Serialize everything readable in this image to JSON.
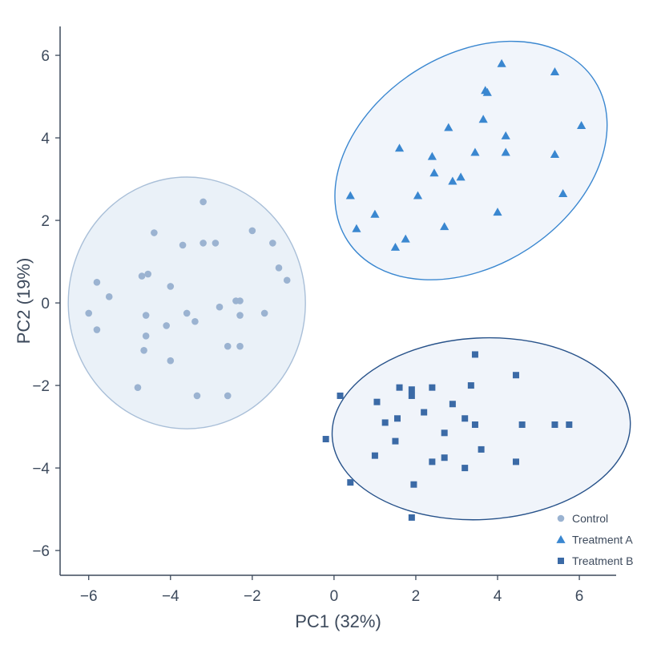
{
  "chart_data": {
    "type": "scatter",
    "xlabel": "PC1 (32%)",
    "ylabel": "PC2 (19%)",
    "xlim": [
      -6.7,
      6.9
    ],
    "ylim": [
      -6.6,
      6.7
    ],
    "xticks": [
      -6,
      -4,
      -2,
      0,
      2,
      4,
      6
    ],
    "yticks": [
      -6,
      -4,
      -2,
      0,
      2,
      4,
      6
    ],
    "xtick_labels": [
      "−6",
      "−4",
      "−2",
      "0",
      "2",
      "4",
      "6"
    ],
    "ytick_labels": [
      "−6",
      "−4",
      "−2",
      "0",
      "2",
      "4",
      "6"
    ],
    "grid": false,
    "legend_position": "bottom-right",
    "series": [
      {
        "name": "Control",
        "marker": "circle",
        "color": "#9bb3d1",
        "ellipse": {
          "center": [
            -3.6,
            0.0
          ],
          "rx": 2.9,
          "ry": 3.05,
          "fill": "#e6eef7",
          "stroke": "#a9bfd8"
        },
        "points": [
          [
            -3.2,
            2.45
          ],
          [
            -4.4,
            1.7
          ],
          [
            -3.7,
            1.4
          ],
          [
            -3.2,
            1.45
          ],
          [
            -2.9,
            1.45
          ],
          [
            -2.0,
            1.75
          ],
          [
            -1.5,
            1.45
          ],
          [
            -1.35,
            0.85
          ],
          [
            -1.15,
            0.55
          ],
          [
            -4.7,
            0.65
          ],
          [
            -4.55,
            0.7
          ],
          [
            -4.0,
            0.4
          ],
          [
            -5.8,
            0.5
          ],
          [
            -5.5,
            0.15
          ],
          [
            -6.0,
            -0.25
          ],
          [
            -5.8,
            -0.65
          ],
          [
            -4.6,
            -0.3
          ],
          [
            -4.6,
            -0.8
          ],
          [
            -4.1,
            -0.55
          ],
          [
            -3.6,
            -0.25
          ],
          [
            -3.4,
            -0.45
          ],
          [
            -2.8,
            -0.1
          ],
          [
            -2.4,
            0.05
          ],
          [
            -2.3,
            0.05
          ],
          [
            -2.3,
            -0.3
          ],
          [
            -1.7,
            -0.25
          ],
          [
            -4.65,
            -1.15
          ],
          [
            -4.0,
            -1.4
          ],
          [
            -2.6,
            -1.05
          ],
          [
            -2.3,
            -1.05
          ],
          [
            -4.8,
            -2.05
          ],
          [
            -3.35,
            -2.25
          ],
          [
            -2.6,
            -2.25
          ]
        ]
      },
      {
        "name": "Treatment A",
        "marker": "triangle",
        "color": "#3a87d0",
        "ellipse": {
          "center": [
            3.35,
            3.45
          ],
          "rx": 3.6,
          "ry": 2.55,
          "angle": -33,
          "fill": "#eef3fa",
          "stroke": "#3a87d0"
        },
        "points": [
          [
            4.1,
            5.8
          ],
          [
            5.4,
            5.6
          ],
          [
            3.7,
            5.15
          ],
          [
            3.75,
            5.1
          ],
          [
            3.65,
            4.45
          ],
          [
            2.8,
            4.25
          ],
          [
            4.2,
            4.05
          ],
          [
            6.05,
            4.3
          ],
          [
            1.6,
            3.75
          ],
          [
            2.4,
            3.55
          ],
          [
            3.45,
            3.65
          ],
          [
            4.2,
            3.65
          ],
          [
            5.4,
            3.6
          ],
          [
            2.45,
            3.15
          ],
          [
            3.1,
            3.05
          ],
          [
            2.9,
            2.95
          ],
          [
            0.4,
            2.6
          ],
          [
            2.05,
            2.6
          ],
          [
            5.6,
            2.65
          ],
          [
            1.0,
            2.15
          ],
          [
            4.0,
            2.2
          ],
          [
            0.55,
            1.8
          ],
          [
            2.7,
            1.85
          ],
          [
            1.75,
            1.55
          ],
          [
            1.5,
            1.35
          ]
        ]
      },
      {
        "name": "Treatment B",
        "marker": "square",
        "color": "#3b6aa6",
        "ellipse": {
          "center": [
            3.6,
            -3.05
          ],
          "rx": 3.65,
          "ry": 2.2,
          "angle": -3,
          "fill": "#edf2f9",
          "stroke": "#27528a"
        },
        "points": [
          [
            3.45,
            -1.25
          ],
          [
            4.45,
            -1.75
          ],
          [
            1.6,
            -2.05
          ],
          [
            1.9,
            -2.1
          ],
          [
            2.4,
            -2.05
          ],
          [
            3.35,
            -2.0
          ],
          [
            0.15,
            -2.25
          ],
          [
            1.9,
            -2.25
          ],
          [
            1.05,
            -2.4
          ],
          [
            2.9,
            -2.45
          ],
          [
            2.2,
            -2.65
          ],
          [
            1.55,
            -2.8
          ],
          [
            3.2,
            -2.8
          ],
          [
            1.25,
            -2.9
          ],
          [
            3.45,
            -2.95
          ],
          [
            4.6,
            -2.95
          ],
          [
            5.4,
            -2.95
          ],
          [
            5.75,
            -2.95
          ],
          [
            2.7,
            -3.15
          ],
          [
            -0.2,
            -3.3
          ],
          [
            1.5,
            -3.35
          ],
          [
            3.6,
            -3.55
          ],
          [
            1.0,
            -3.7
          ],
          [
            2.7,
            -3.75
          ],
          [
            2.4,
            -3.85
          ],
          [
            4.45,
            -3.85
          ],
          [
            3.2,
            -4.0
          ],
          [
            0.4,
            -4.35
          ],
          [
            1.95,
            -4.4
          ],
          [
            1.9,
            -5.2
          ]
        ]
      }
    ]
  }
}
